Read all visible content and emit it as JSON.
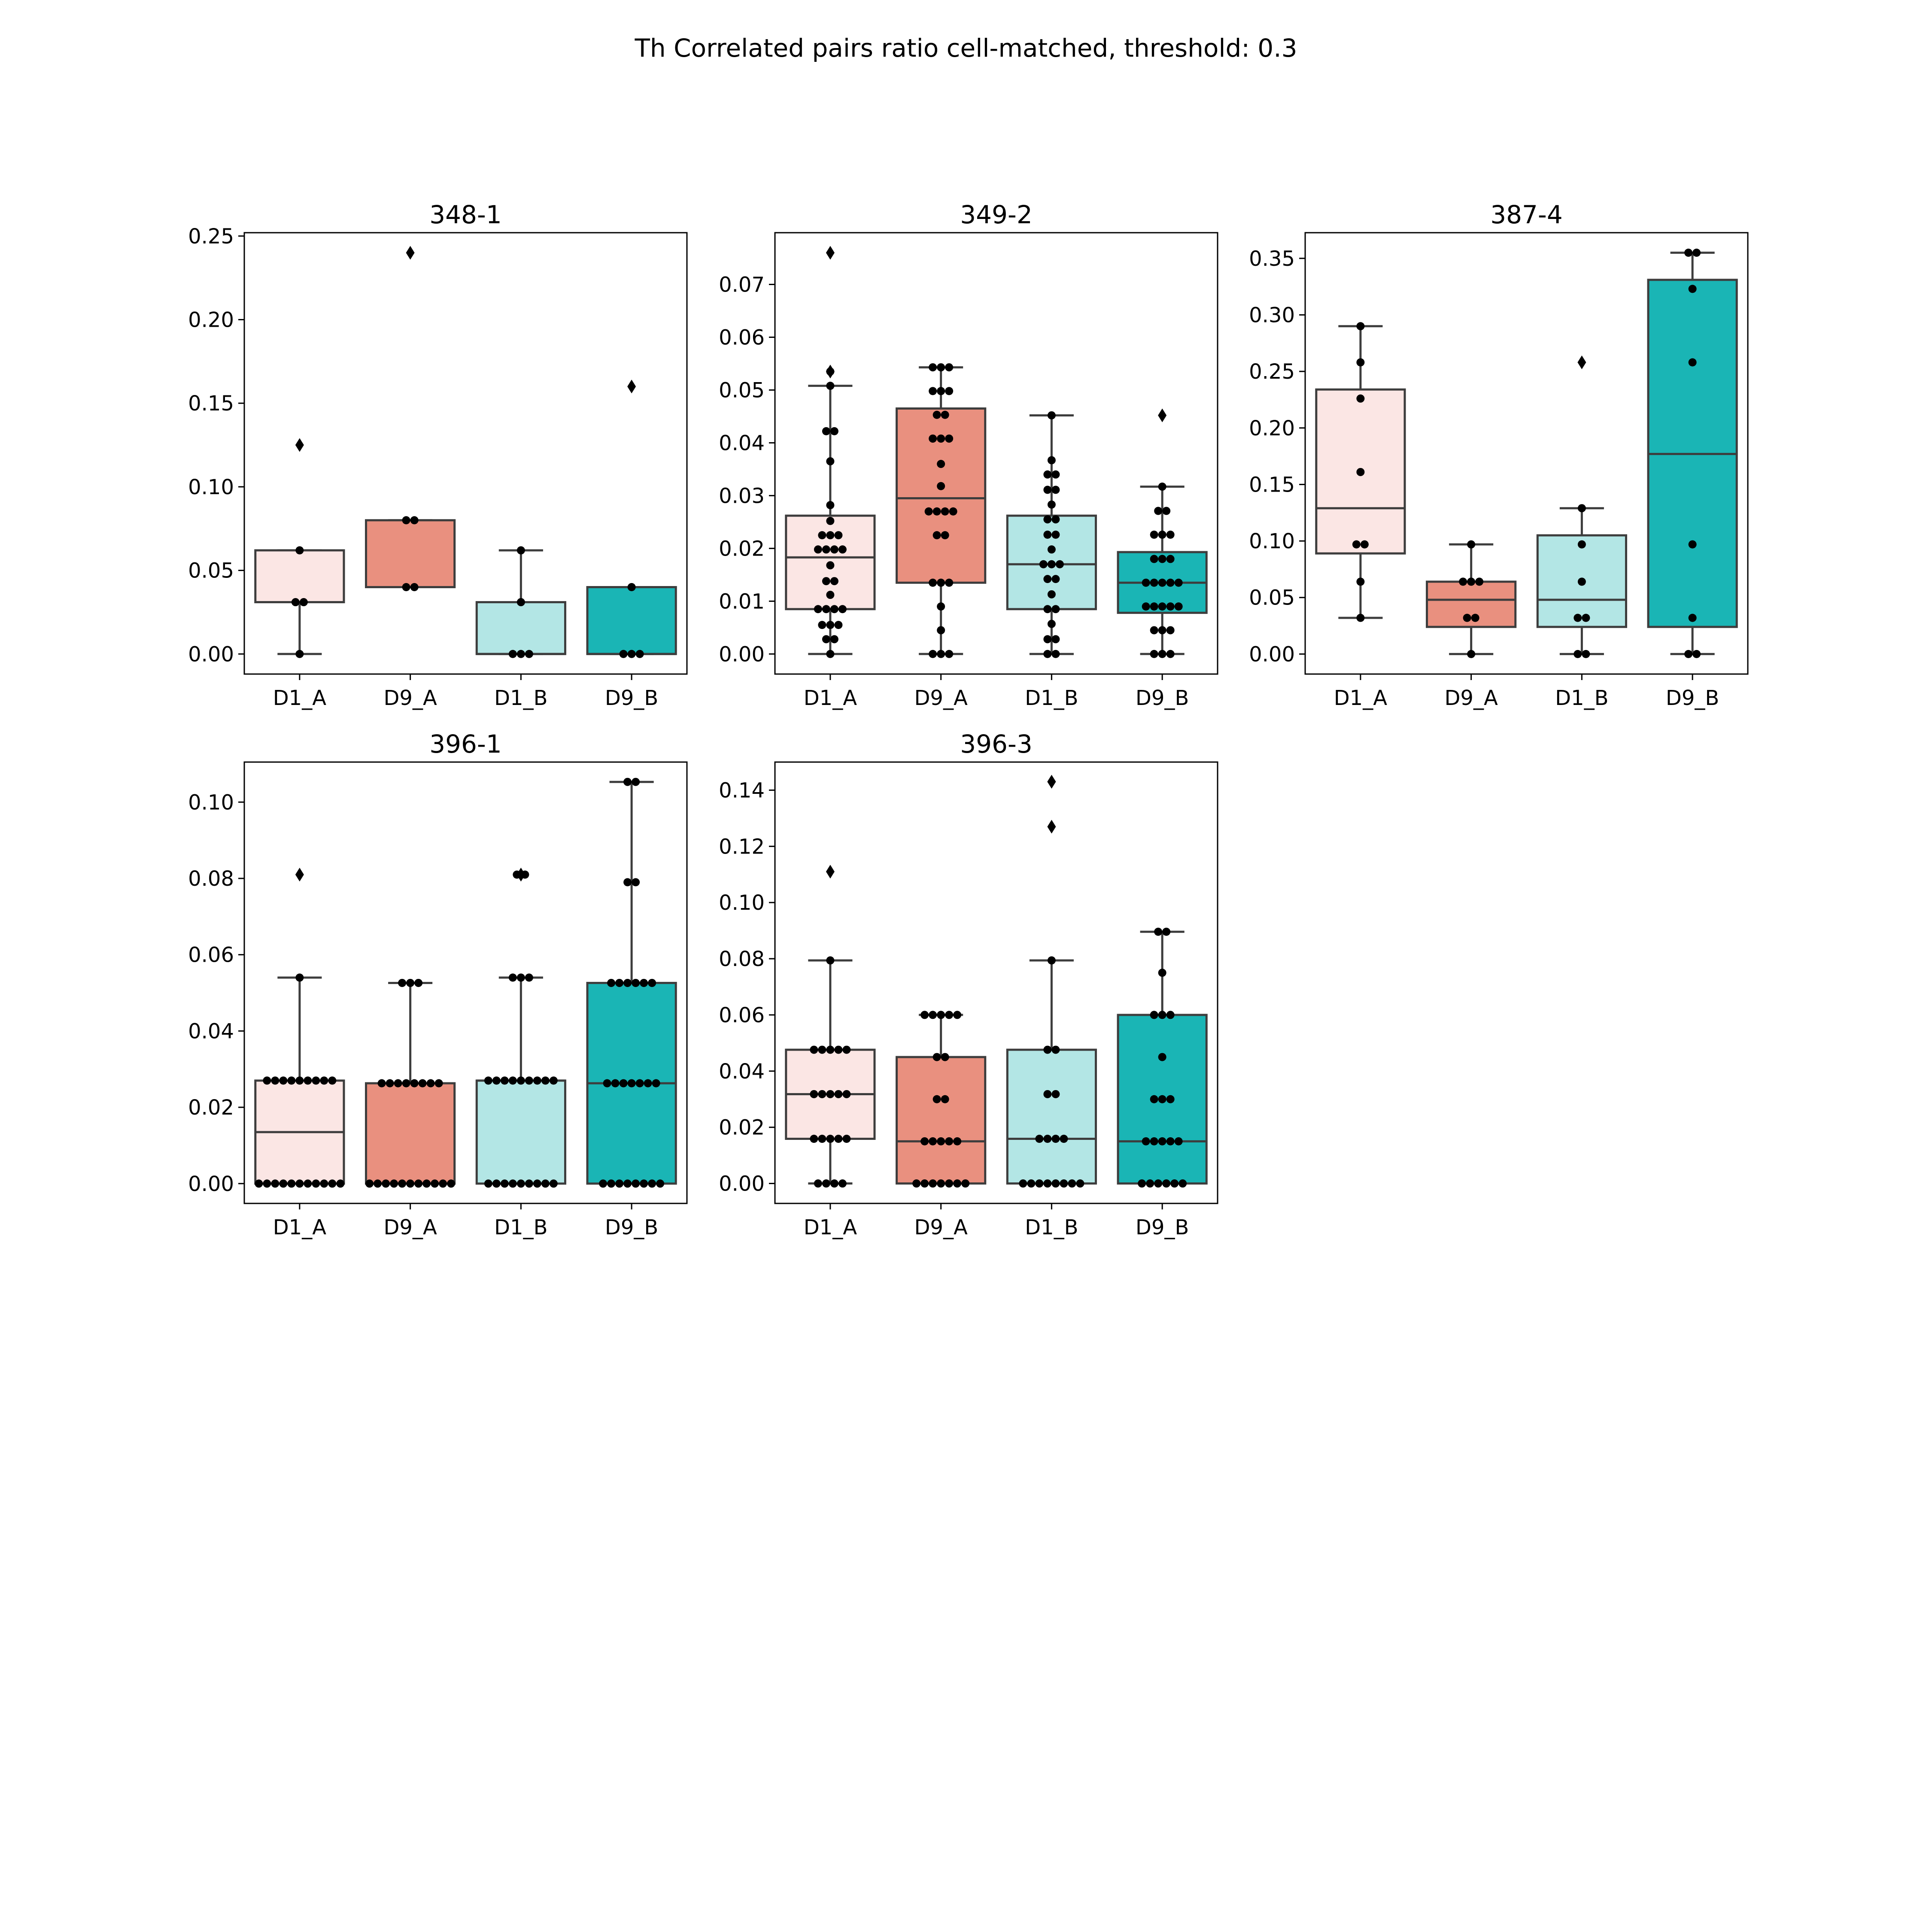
{
  "figure_title": "Th Correlated pairs ratio cell-matched, threshold: 0.3",
  "colors": {
    "D1_A": "#fbe6e4",
    "D9_A": "#e9907f",
    "D1_B": "#b3e6e5",
    "D9_B": "#1ab5b5",
    "edge": "#3d3d3d",
    "point": "#000000"
  },
  "chart_data": [
    {
      "type": "box",
      "title": "348-1",
      "categories": [
        "D1_A",
        "D9_A",
        "D1_B",
        "D9_B"
      ],
      "ylim": [
        -0.012,
        0.252
      ],
      "yticks": [
        0.0,
        0.05,
        0.1,
        0.15,
        0.2,
        0.25
      ],
      "ytick_labels": [
        "0.00",
        "0.05",
        "0.10",
        "0.15",
        "0.20",
        "0.25"
      ],
      "boxes": [
        {
          "q1": 0.031,
          "median": 0.031,
          "q3": 0.062,
          "whisker_low": 0.0,
          "whisker_high": 0.062,
          "fliers": [
            0.125
          ],
          "points": [
            0.0,
            0.031,
            0.031,
            0.062
          ]
        },
        {
          "q1": 0.04,
          "median": 0.04,
          "q3": 0.08,
          "whisker_low": 0.04,
          "whisker_high": 0.08,
          "fliers": [
            0.24
          ],
          "points": [
            0.04,
            0.04,
            0.08,
            0.08
          ]
        },
        {
          "q1": 0.0,
          "median": 0.0,
          "q3": 0.031,
          "whisker_low": 0.0,
          "whisker_high": 0.062,
          "fliers": [],
          "points": [
            0.0,
            0.0,
            0.0,
            0.031,
            0.062
          ]
        },
        {
          "q1": 0.0,
          "median": 0.0,
          "q3": 0.04,
          "whisker_low": 0.0,
          "whisker_high": 0.04,
          "fliers": [
            0.16
          ],
          "points": [
            0.0,
            0.0,
            0.0,
            0.04
          ]
        }
      ]
    },
    {
      "type": "box",
      "title": "349-2",
      "categories": [
        "D1_A",
        "D9_A",
        "D1_B",
        "D9_B"
      ],
      "ylim": [
        -0.0038,
        0.0798
      ],
      "yticks": [
        0.0,
        0.01,
        0.02,
        0.03,
        0.04,
        0.05,
        0.06,
        0.07
      ],
      "ytick_labels": [
        "0.00",
        "0.01",
        "0.02",
        "0.03",
        "0.04",
        "0.05",
        "0.06",
        "0.07"
      ],
      "boxes": [
        {
          "q1": 0.0085,
          "median": 0.0183,
          "q3": 0.0262,
          "whisker_low": 0.0,
          "whisker_high": 0.0508,
          "fliers": [
            0.0535,
            0.076
          ],
          "points": [
            0.0,
            0.0028,
            0.0028,
            0.0055,
            0.0055,
            0.0055,
            0.0085,
            0.0085,
            0.0085,
            0.0085,
            0.0112,
            0.0138,
            0.0138,
            0.0168,
            0.0198,
            0.0198,
            0.0198,
            0.0198,
            0.0225,
            0.0225,
            0.0225,
            0.0252,
            0.0282,
            0.0365,
            0.0422,
            0.0422,
            0.0508,
            0.0535
          ]
        },
        {
          "q1": 0.0135,
          "median": 0.0295,
          "q3": 0.0465,
          "whisker_low": 0.0,
          "whisker_high": 0.0543,
          "fliers": [],
          "points": [
            0.0,
            0.0,
            0.0,
            0.0045,
            0.009,
            0.0135,
            0.0135,
            0.0135,
            0.0225,
            0.0225,
            0.027,
            0.027,
            0.027,
            0.027,
            0.0318,
            0.036,
            0.0408,
            0.0408,
            0.0408,
            0.0453,
            0.0453,
            0.0498,
            0.0498,
            0.0498,
            0.0543,
            0.0543,
            0.0543
          ]
        },
        {
          "q1": 0.0085,
          "median": 0.017,
          "q3": 0.0262,
          "whisker_low": 0.0,
          "whisker_high": 0.0452,
          "fliers": [],
          "points": [
            0.0,
            0.0,
            0.0028,
            0.0028,
            0.0057,
            0.0085,
            0.0085,
            0.0113,
            0.0142,
            0.0142,
            0.017,
            0.017,
            0.017,
            0.0198,
            0.0226,
            0.0226,
            0.0255,
            0.0255,
            0.0283,
            0.0311,
            0.0311,
            0.034,
            0.034,
            0.0367,
            0.0452
          ]
        },
        {
          "q1": 0.0078,
          "median": 0.0135,
          "q3": 0.0193,
          "whisker_low": 0.0,
          "whisker_high": 0.0317,
          "fliers": [
            0.0452
          ],
          "points": [
            0.0,
            0.0,
            0.0,
            0.0045,
            0.0045,
            0.0045,
            0.009,
            0.009,
            0.009,
            0.009,
            0.009,
            0.0135,
            0.0135,
            0.0135,
            0.0135,
            0.0135,
            0.018,
            0.018,
            0.018,
            0.0226,
            0.0226,
            0.0226,
            0.0271,
            0.0271,
            0.0317
          ]
        }
      ]
    },
    {
      "type": "box",
      "title": "387-4",
      "categories": [
        "D1_A",
        "D9_A",
        "D1_B",
        "D9_B"
      ],
      "ylim": [
        -0.0177,
        0.3727
      ],
      "yticks": [
        0.0,
        0.05,
        0.1,
        0.15,
        0.2,
        0.25,
        0.3,
        0.35
      ],
      "ytick_labels": [
        "0.00",
        "0.05",
        "0.10",
        "0.15",
        "0.20",
        "0.25",
        "0.30",
        "0.35"
      ],
      "boxes": [
        {
          "q1": 0.089,
          "median": 0.129,
          "q3": 0.234,
          "whisker_low": 0.032,
          "whisker_high": 0.29,
          "fliers": [],
          "points": [
            0.032,
            0.064,
            0.097,
            0.097,
            0.161,
            0.226,
            0.258,
            0.29
          ]
        },
        {
          "q1": 0.024,
          "median": 0.048,
          "q3": 0.064,
          "whisker_low": 0.0,
          "whisker_high": 0.097,
          "fliers": [],
          "points": [
            0.0,
            0.032,
            0.032,
            0.064,
            0.064,
            0.064,
            0.097
          ]
        },
        {
          "q1": 0.024,
          "median": 0.048,
          "q3": 0.105,
          "whisker_low": 0.0,
          "whisker_high": 0.129,
          "fliers": [
            0.258
          ],
          "points": [
            0.0,
            0.0,
            0.032,
            0.032,
            0.064,
            0.097,
            0.129
          ]
        },
        {
          "q1": 0.024,
          "median": 0.177,
          "q3": 0.331,
          "whisker_low": 0.0,
          "whisker_high": 0.355,
          "fliers": [],
          "points": [
            0.0,
            0.0,
            0.032,
            0.097,
            0.258,
            0.323,
            0.355,
            0.355
          ]
        }
      ]
    },
    {
      "type": "box",
      "title": "396-1",
      "categories": [
        "D1_A",
        "D9_A",
        "D1_B",
        "D9_B"
      ],
      "ylim": [
        -0.0052,
        0.1105
      ],
      "yticks": [
        0.0,
        0.02,
        0.04,
        0.06,
        0.08,
        0.1
      ],
      "ytick_labels": [
        "0.00",
        "0.02",
        "0.04",
        "0.06",
        "0.08",
        "0.10"
      ],
      "boxes": [
        {
          "q1": 0.0,
          "median": 0.0135,
          "q3": 0.027,
          "whisker_low": 0.0,
          "whisker_high": 0.054,
          "fliers": [
            0.081
          ],
          "points": [
            0.0,
            0.0,
            0.0,
            0.0,
            0.0,
            0.0,
            0.0,
            0.0,
            0.0,
            0.0,
            0.0,
            0.027,
            0.027,
            0.027,
            0.027,
            0.027,
            0.027,
            0.027,
            0.027,
            0.027,
            0.054
          ]
        },
        {
          "q1": 0.0,
          "median": 0.0,
          "q3": 0.0263,
          "whisker_low": 0.0,
          "whisker_high": 0.0526,
          "fliers": [],
          "points": [
            0.0,
            0.0,
            0.0,
            0.0,
            0.0,
            0.0,
            0.0,
            0.0,
            0.0,
            0.0,
            0.0,
            0.0263,
            0.0263,
            0.0263,
            0.0263,
            0.0263,
            0.0263,
            0.0263,
            0.0263,
            0.0526,
            0.0526,
            0.0526
          ]
        },
        {
          "q1": 0.0,
          "median": 0.027,
          "q3": 0.027,
          "whisker_low": 0.0,
          "whisker_high": 0.054,
          "fliers": [
            0.081,
            0.081
          ],
          "points": [
            0.0,
            0.0,
            0.0,
            0.0,
            0.0,
            0.0,
            0.0,
            0.0,
            0.0,
            0.027,
            0.027,
            0.027,
            0.027,
            0.027,
            0.027,
            0.027,
            0.027,
            0.027,
            0.054,
            0.054,
            0.054,
            0.081,
            0.081
          ]
        },
        {
          "q1": 0.0,
          "median": 0.0263,
          "q3": 0.0526,
          "whisker_low": 0.0,
          "whisker_high": 0.1053,
          "fliers": [],
          "points": [
            0.0,
            0.0,
            0.0,
            0.0,
            0.0,
            0.0,
            0.0,
            0.0,
            0.0263,
            0.0263,
            0.0263,
            0.0263,
            0.0263,
            0.0263,
            0.0263,
            0.0526,
            0.0526,
            0.0526,
            0.0526,
            0.0526,
            0.0526,
            0.079,
            0.079,
            0.1053,
            0.1053
          ]
        }
      ]
    },
    {
      "type": "box",
      "title": "396-3",
      "categories": [
        "D1_A",
        "D9_A",
        "D1_B",
        "D9_B"
      ],
      "ylim": [
        -0.0071,
        0.15
      ],
      "yticks": [
        0.0,
        0.02,
        0.04,
        0.06,
        0.08,
        0.1,
        0.12,
        0.14
      ],
      "ytick_labels": [
        "0.00",
        "0.02",
        "0.04",
        "0.06",
        "0.08",
        "0.10",
        "0.12",
        "0.14"
      ],
      "boxes": [
        {
          "q1": 0.0159,
          "median": 0.0318,
          "q3": 0.0476,
          "whisker_low": 0.0,
          "whisker_high": 0.0794,
          "fliers": [
            0.111
          ],
          "points": [
            0.0,
            0.0,
            0.0,
            0.0,
            0.0159,
            0.0159,
            0.0159,
            0.0159,
            0.0159,
            0.0318,
            0.0318,
            0.0318,
            0.0318,
            0.0318,
            0.0476,
            0.0476,
            0.0476,
            0.0476,
            0.0476,
            0.0794
          ]
        },
        {
          "q1": 0.0,
          "median": 0.015,
          "q3": 0.045,
          "whisker_low": 0.0,
          "whisker_high": 0.06,
          "fliers": [],
          "points": [
            0.0,
            0.0,
            0.0,
            0.0,
            0.0,
            0.0,
            0.0,
            0.015,
            0.015,
            0.015,
            0.015,
            0.015,
            0.03,
            0.03,
            0.045,
            0.045,
            0.06,
            0.06,
            0.06,
            0.06,
            0.06
          ]
        },
        {
          "q1": 0.0,
          "median": 0.0159,
          "q3": 0.0476,
          "whisker_low": 0.0,
          "whisker_high": 0.0794,
          "fliers": [
            0.127,
            0.143,
            0.143
          ],
          "points": [
            0.0,
            0.0,
            0.0,
            0.0,
            0.0,
            0.0,
            0.0,
            0.0,
            0.0159,
            0.0159,
            0.0159,
            0.0159,
            0.0318,
            0.0318,
            0.0476,
            0.0476,
            0.0794
          ]
        },
        {
          "q1": 0.0,
          "median": 0.015,
          "q3": 0.06,
          "whisker_low": 0.0,
          "whisker_high": 0.0896,
          "fliers": [],
          "points": [
            0.0,
            0.0,
            0.0,
            0.0,
            0.0,
            0.0,
            0.015,
            0.015,
            0.015,
            0.015,
            0.015,
            0.03,
            0.03,
            0.03,
            0.045,
            0.06,
            0.06,
            0.06,
            0.075,
            0.0896,
            0.0896
          ]
        }
      ]
    }
  ]
}
